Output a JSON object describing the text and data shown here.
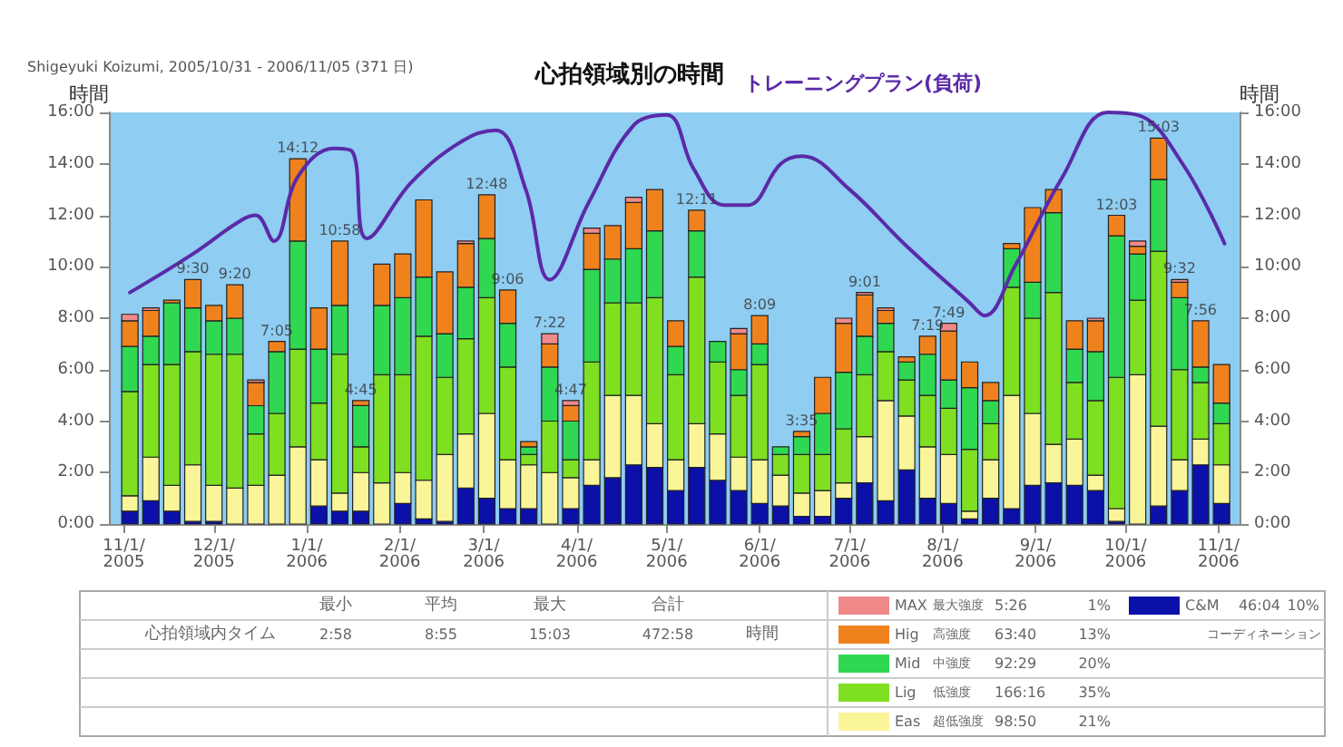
{
  "chart_data": {
    "type": "bar",
    "title": "心拍領域別の時間",
    "subtitle": "Shigeyuki Koizumi, 2005/10/31 - 2006/11/05 (371 日)",
    "ylabel": "時間",
    "y2label": "時間",
    "stacked": true,
    "grid": false,
    "legend": "bottom right",
    "x": [
      "2005-11-03",
      "2005-11-10",
      "2005-11-17",
      "2005-11-24",
      "2005-12-01",
      "2005-12-08",
      "2005-12-15",
      "2005-12-22",
      "2005-12-29",
      "2006-01-05",
      "2006-01-12",
      "2006-01-19",
      "2006-01-26",
      "2006-02-02",
      "2006-02-09",
      "2006-02-16",
      "2006-02-23",
      "2006-03-02",
      "2006-03-09",
      "2006-03-16",
      "2006-03-23",
      "2006-03-30",
      "2006-04-06",
      "2006-04-13",
      "2006-04-20",
      "2006-04-27",
      "2006-05-04",
      "2006-05-11",
      "2006-05-18",
      "2006-05-25",
      "2006-06-01",
      "2006-06-08",
      "2006-06-15",
      "2006-06-22",
      "2006-06-29",
      "2006-07-06",
      "2006-07-13",
      "2006-07-20",
      "2006-07-27",
      "2006-08-03",
      "2006-08-10",
      "2006-08-17",
      "2006-08-24",
      "2006-08-31",
      "2006-09-07",
      "2006-09-14",
      "2006-09-21",
      "2006-09-28",
      "2006-10-05",
      "2006-10-12",
      "2006-10-19",
      "2006-10-26",
      "2006-11-02"
    ],
    "xlim": [
      "2005-10-27",
      "2006-11-08"
    ],
    "xticks": [
      {
        "value": "2005-11-01",
        "label": "11/1/\n2005"
      },
      {
        "value": "2005-12-01",
        "label": "12/1/\n2005"
      },
      {
        "value": "2006-01-01",
        "label": "1/1/\n2006"
      },
      {
        "value": "2006-02-01",
        "label": "2/1/\n2006"
      },
      {
        "value": "2006-03-01",
        "label": "3/1/\n2006"
      },
      {
        "value": "2006-04-01",
        "label": "4/1/\n2006"
      },
      {
        "value": "2006-05-01",
        "label": "5/1/\n2006"
      },
      {
        "value": "2006-06-01",
        "label": "6/1/\n2006"
      },
      {
        "value": "2006-07-01",
        "label": "7/1/\n2006"
      },
      {
        "value": "2006-08-01",
        "label": "8/1/\n2006"
      },
      {
        "value": "2006-09-01",
        "label": "9/1/\n2006"
      },
      {
        "value": "2006-10-01",
        "label": "10/1/\n2006"
      },
      {
        "value": "2006-11-01",
        "label": "11/1/\n2006"
      }
    ],
    "ylim": [
      0,
      16
    ],
    "yticks": [
      {
        "value": 0,
        "label": "0:00"
      },
      {
        "value": 2,
        "label": "2:00"
      },
      {
        "value": 4,
        "label": "4:00"
      },
      {
        "value": 6,
        "label": "6:00"
      },
      {
        "value": 8,
        "label": "8:00"
      },
      {
        "value": 10,
        "label": "10:00"
      },
      {
        "value": 12,
        "label": "12:00"
      },
      {
        "value": 14,
        "label": "14:00"
      },
      {
        "value": 16,
        "label": "16:00"
      }
    ],
    "y2lim": [
      0,
      16
    ],
    "y2ticks": [
      {
        "value": 0,
        "label": "0:00"
      },
      {
        "value": 2,
        "label": "2:00"
      },
      {
        "value": 4,
        "label": "4:00"
      },
      {
        "value": 6,
        "label": "6:00"
      },
      {
        "value": 8,
        "label": "8:00"
      },
      {
        "value": 10,
        "label": "10:00"
      },
      {
        "value": 12,
        "label": "12:00"
      },
      {
        "value": 14,
        "label": "14:00"
      },
      {
        "value": 16,
        "label": "16:00"
      }
    ],
    "series": [
      {
        "name": "C&M",
        "color": "#0a10a8",
        "values": [
          0.5,
          0.9,
          0.5,
          0.1,
          0.1,
          0,
          0,
          0,
          0,
          0.7,
          0.5,
          0.5,
          0,
          0.8,
          0.2,
          0.1,
          1.4,
          1.0,
          0.6,
          0.6,
          0,
          0.6,
          1.5,
          1.8,
          2.3,
          2.2,
          1.3,
          2.2,
          1.7,
          1.3,
          0.8,
          0.7,
          0.3,
          0.3,
          1.0,
          1.6,
          0.9,
          2.1,
          1.0,
          0.8,
          0.2,
          1.0,
          0.6,
          1.5,
          1.6,
          1.5,
          1.3,
          0.1,
          0,
          0.7,
          1.3,
          2.3,
          0.8
        ]
      },
      {
        "name": "Eas",
        "color": "#fbf59a",
        "values": [
          0.6,
          1.7,
          1.0,
          2.2,
          1.4,
          1.4,
          1.5,
          1.9,
          3.0,
          1.8,
          0.7,
          1.5,
          1.6,
          1.2,
          1.5,
          2.6,
          2.1,
          3.3,
          1.9,
          1.7,
          2.0,
          1.2,
          1.0,
          3.2,
          2.7,
          1.7,
          1.2,
          1.7,
          1.8,
          1.3,
          1.7,
          1.2,
          0.9,
          1.0,
          0.6,
          1.8,
          3.9,
          2.1,
          2.0,
          1.9,
          0.3,
          1.5,
          4.4,
          2.8,
          1.5,
          1.8,
          0.6,
          0.5,
          5.8,
          3.1,
          1.2,
          1.0,
          1.5
        ]
      },
      {
        "name": "Lig",
        "color": "#7ee020",
        "values": [
          4.05,
          3.6,
          4.7,
          4.4,
          5.1,
          5.2,
          2.0,
          2.4,
          3.8,
          2.2,
          5.4,
          1.0,
          4.2,
          3.8,
          5.6,
          3.0,
          3.7,
          4.5,
          3.6,
          0.4,
          2.0,
          0.7,
          3.8,
          3.6,
          3.6,
          4.9,
          3.3,
          5.7,
          2.8,
          2.4,
          3.7,
          0.8,
          1.5,
          1.4,
          2.1,
          2.4,
          1.9,
          1.4,
          2.0,
          1.8,
          2.4,
          1.4,
          4.2,
          3.7,
          5.9,
          2.2,
          2.9,
          5.1,
          2.9,
          6.8,
          3.5,
          2.2,
          1.6
        ]
      },
      {
        "name": "Mid",
        "color": "#2fd850",
        "values": [
          1.75,
          1.1,
          2.4,
          1.7,
          1.3,
          1.4,
          1.1,
          2.4,
          4.2,
          2.1,
          1.9,
          1.6,
          2.7,
          3.0,
          2.3,
          1.7,
          2.0,
          2.3,
          1.7,
          0.3,
          2.1,
          1.5,
          3.6,
          1.7,
          2.1,
          2.6,
          1.1,
          1.8,
          0.8,
          1.0,
          0.8,
          0.3,
          0.7,
          1.6,
          2.2,
          1.5,
          1.1,
          0.7,
          1.6,
          1.1,
          2.4,
          0.9,
          1.5,
          1.4,
          3.1,
          1.3,
          1.9,
          5.5,
          1.8,
          2.8,
          2.8,
          0.6,
          0.8
        ]
      },
      {
        "name": "Hig",
        "color": "#f0821e",
        "values": [
          1.0,
          1.0,
          0.1,
          1.1,
          0.6,
          1.3,
          0.9,
          0.4,
          3.2,
          1.6,
          2.5,
          0.2,
          1.6,
          1.7,
          3.0,
          2.4,
          1.7,
          1.7,
          1.3,
          0.2,
          0.9,
          0.6,
          1.4,
          1.3,
          1.8,
          1.6,
          1.0,
          0.8,
          0,
          1.4,
          1.1,
          0,
          0.2,
          1.4,
          1.9,
          1.6,
          0.5,
          0.2,
          0.7,
          1.9,
          1.0,
          0.7,
          0.2,
          2.9,
          0.9,
          1.1,
          1.2,
          0.8,
          0.3,
          1.6,
          0.6,
          1.8,
          1.5
        ]
      },
      {
        "name": "MAX",
        "color": "#f08a8a",
        "values": [
          0.25,
          0.1,
          0,
          0,
          0,
          0,
          0.1,
          0,
          0,
          0,
          0,
          0,
          0,
          0,
          0,
          0,
          0.1,
          0,
          0,
          0,
          0.4,
          0.2,
          0.2,
          0,
          0.2,
          0,
          0,
          0,
          0,
          0.2,
          0,
          0,
          0,
          0,
          0.2,
          0.1,
          0.1,
          0,
          0,
          0.3,
          0,
          0,
          0,
          0,
          0,
          0,
          0.1,
          0,
          0.2,
          0,
          0.1,
          0,
          0
        ]
      },
      {
        "name": "トレーニングプラン(負荷)",
        "type": "line",
        "color": "#5a2aa8",
        "x": [
          "2005-11-03",
          "2005-11-24",
          "2005-12-10",
          "2005-12-15",
          "2005-12-21",
          "2005-12-29",
          "2006-01-10",
          "2006-01-16",
          "2006-01-21",
          "2006-02-05",
          "2006-02-22",
          "2006-03-05",
          "2006-03-15",
          "2006-03-23",
          "2006-04-05",
          "2006-04-20",
          "2006-05-01",
          "2006-05-10",
          "2006-05-20",
          "2006-05-28",
          "2006-06-08",
          "2006-06-15",
          "2006-07-01",
          "2006-07-20",
          "2006-08-10",
          "2006-08-15",
          "2006-08-25",
          "2006-09-10",
          "2006-09-25",
          "2006-10-05",
          "2006-10-20",
          "2006-11-03"
        ],
        "values": [
          9.0,
          10.5,
          11.8,
          12.0,
          11.0,
          13.5,
          14.6,
          14.5,
          11.1,
          13.3,
          14.9,
          15.3,
          13.0,
          9.5,
          12.5,
          15.5,
          15.9,
          13.8,
          12.4,
          12.4,
          14.0,
          14.3,
          13.0,
          10.8,
          8.6,
          8.1,
          10.0,
          13.5,
          16.0,
          15.9,
          14.0,
          10.9
        ]
      }
    ],
    "totals": [
      null,
      null,
      null,
      "9:30",
      null,
      "9:20",
      null,
      "7:05",
      "14:12",
      null,
      "10:58",
      "4:45",
      null,
      null,
      null,
      null,
      null,
      "12:48",
      "9:06",
      null,
      "7:22",
      "4:47",
      null,
      null,
      null,
      null,
      null,
      "12:11",
      null,
      null,
      "8:09",
      null,
      "3:35",
      null,
      null,
      "9:01",
      null,
      null,
      "7:19",
      "7:49",
      null,
      null,
      null,
      null,
      null,
      null,
      null,
      "12:03",
      null,
      "15:03",
      "9:32",
      "7:56",
      null
    ],
    "annotations": [
      "最小",
      "平均",
      "最大",
      "合計",
      "心拍領域内タイム",
      "2:58",
      "8:55",
      "15:03",
      "472:58",
      "時間",
      "コーディネーション",
      "46:04",
      "10%",
      "超低強度",
      "98:50",
      "21%",
      "低強度",
      "166:16",
      "35%",
      "中強度",
      "92:29",
      "20%",
      "高強度",
      "63:40",
      "13%",
      "最大強度",
      "5:26",
      "1%"
    ]
  }
}
